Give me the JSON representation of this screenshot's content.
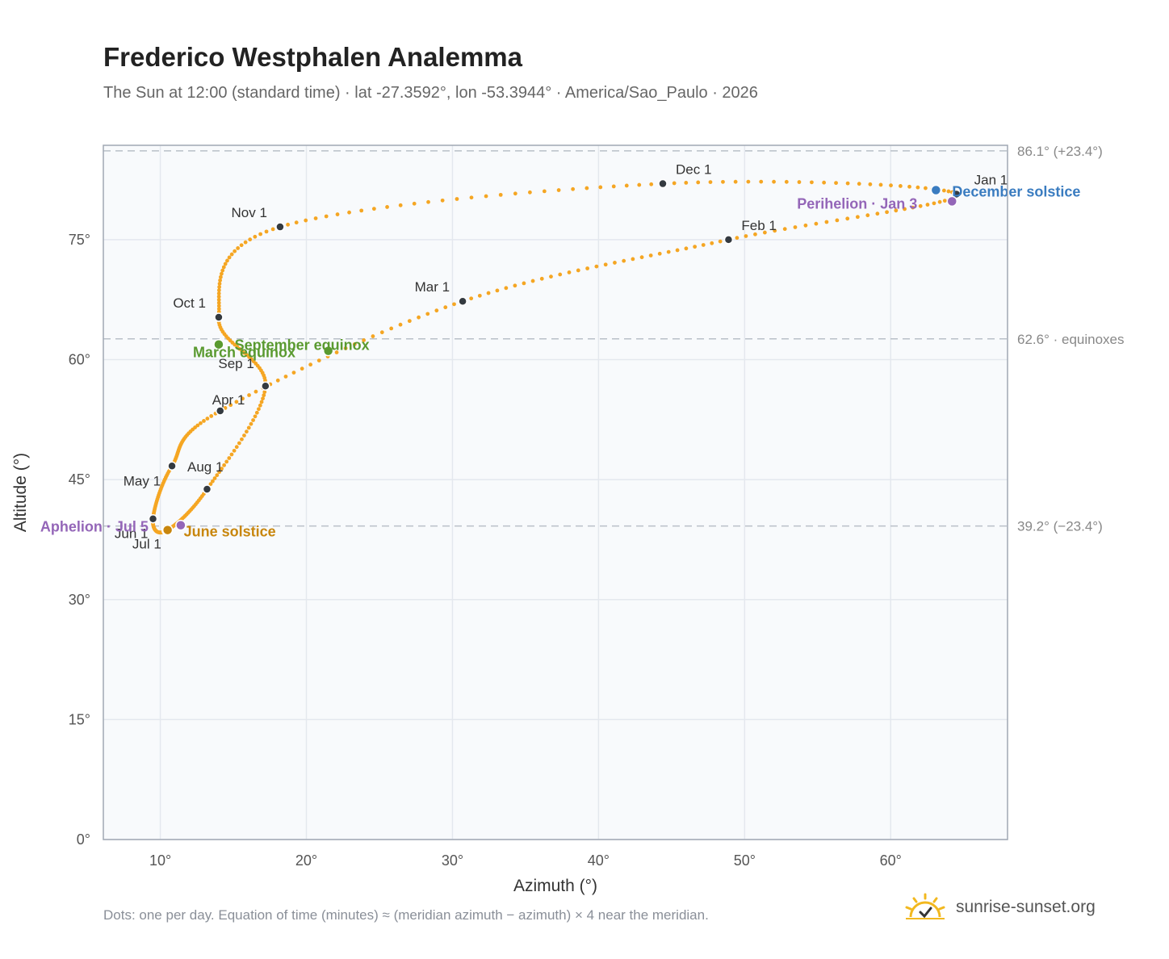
{
  "title": "Frederico Westphalen Analemma",
  "subtitle": "The Sun at 12:00 (standard time) · lat -27.3592°, lon -53.3944° · America/Sao_Paulo · 2026",
  "footnote": "Dots: one per day. Equation of time (minutes) ≈ (meridian azimuth − azimuth) × 4 near the meridian.",
  "brand": {
    "text": "sunrise-sunset.org",
    "icon": "sun-logo-icon",
    "color": "#f2b81f"
  },
  "chart_data": {
    "type": "scatter",
    "xlabel": "Azimuth (°)",
    "ylabel": "Altitude (°)",
    "xlim": [
      6.1,
      68.0
    ],
    "ylim": [
      0,
      86.8
    ],
    "x_ticks": [
      {
        "value": 10,
        "label": "10°"
      },
      {
        "value": 20,
        "label": "20°"
      },
      {
        "value": 30,
        "label": "30°"
      },
      {
        "value": 40,
        "label": "40°"
      },
      {
        "value": 50,
        "label": "50°"
      },
      {
        "value": 60,
        "label": "60°"
      }
    ],
    "y_ticks": [
      {
        "value": 0,
        "label": "0°"
      },
      {
        "value": 15,
        "label": "15°"
      },
      {
        "value": 30,
        "label": "30°"
      },
      {
        "value": 45,
        "label": "45°"
      },
      {
        "value": 60,
        "label": "60°"
      },
      {
        "value": 75,
        "label": "75°"
      }
    ],
    "grid": true,
    "colors": {
      "dots": "#f5a623",
      "month_marker": "#343a40",
      "equinox": "#5a9a30",
      "june_solstice": "#c8860d",
      "december_solstice": "#3a7cc0",
      "apsis": "#9466b8",
      "reference_line": "#b9c0c8",
      "plot_background": "#f8fafc",
      "plot_border": "#a0a8b4"
    },
    "reference_lines": [
      {
        "value": 86.1,
        "label": "86.1° (+23.4°)"
      },
      {
        "value": 62.6,
        "label": "62.6° · equinoxes"
      },
      {
        "value": 39.2,
        "label": "39.2° (−23.4°)"
      }
    ],
    "daily_path": [
      {
        "x": 64.5,
        "y": 80.7
      },
      {
        "x": 48.9,
        "y": 75.0
      },
      {
        "x": 30.7,
        "y": 67.3
      },
      {
        "x": 14.1,
        "y": 53.6
      },
      {
        "x": 10.8,
        "y": 46.7
      },
      {
        "x": 9.5,
        "y": 40.1
      },
      {
        "x": 10.4,
        "y": 38.6
      },
      {
        "x": 13.2,
        "y": 43.8
      },
      {
        "x": 17.2,
        "y": 56.7
      },
      {
        "x": 14.0,
        "y": 65.3
      },
      {
        "x": 18.2,
        "y": 76.6
      },
      {
        "x": 44.4,
        "y": 82.0
      }
    ],
    "month_markers": [
      {
        "label": "Jan 1",
        "x": 64.5,
        "y": 80.7
      },
      {
        "label": "Feb 1",
        "x": 48.9,
        "y": 75.0
      },
      {
        "label": "Mar 1",
        "x": 30.7,
        "y": 67.3
      },
      {
        "label": "Apr 1",
        "x": 14.1,
        "y": 53.6
      },
      {
        "label": "May 1",
        "x": 10.8,
        "y": 46.7
      },
      {
        "label": "Jun 1",
        "x": 9.5,
        "y": 40.1
      },
      {
        "label": "Jul 1",
        "x": 10.4,
        "y": 38.6
      },
      {
        "label": "Aug 1",
        "x": 13.2,
        "y": 43.8
      },
      {
        "label": "Sep 1",
        "x": 17.2,
        "y": 56.7
      },
      {
        "label": "Oct 1",
        "x": 14.0,
        "y": 65.3
      },
      {
        "label": "Nov 1",
        "x": 18.2,
        "y": 76.6
      },
      {
        "label": "Dec 1",
        "x": 44.4,
        "y": 82.0
      }
    ],
    "events": [
      {
        "label": "March equinox",
        "x": 14.0,
        "y": 61.9,
        "color": "#5a9a30"
      },
      {
        "label": "September equinox",
        "x": 21.5,
        "y": 61.1,
        "color": "#5a9a30"
      },
      {
        "label": "June solstice",
        "x": 10.5,
        "y": 38.7,
        "color": "#c8860d"
      },
      {
        "label": "December solstice",
        "x": 63.1,
        "y": 81.2,
        "color": "#3a7cc0"
      },
      {
        "label": "Aphelion · Jul 5",
        "x": 11.4,
        "y": 39.3,
        "color": "#9466b8"
      },
      {
        "label": "Perihelion · Jan 3",
        "x": 64.2,
        "y": 79.8,
        "color": "#9466b8"
      }
    ]
  }
}
